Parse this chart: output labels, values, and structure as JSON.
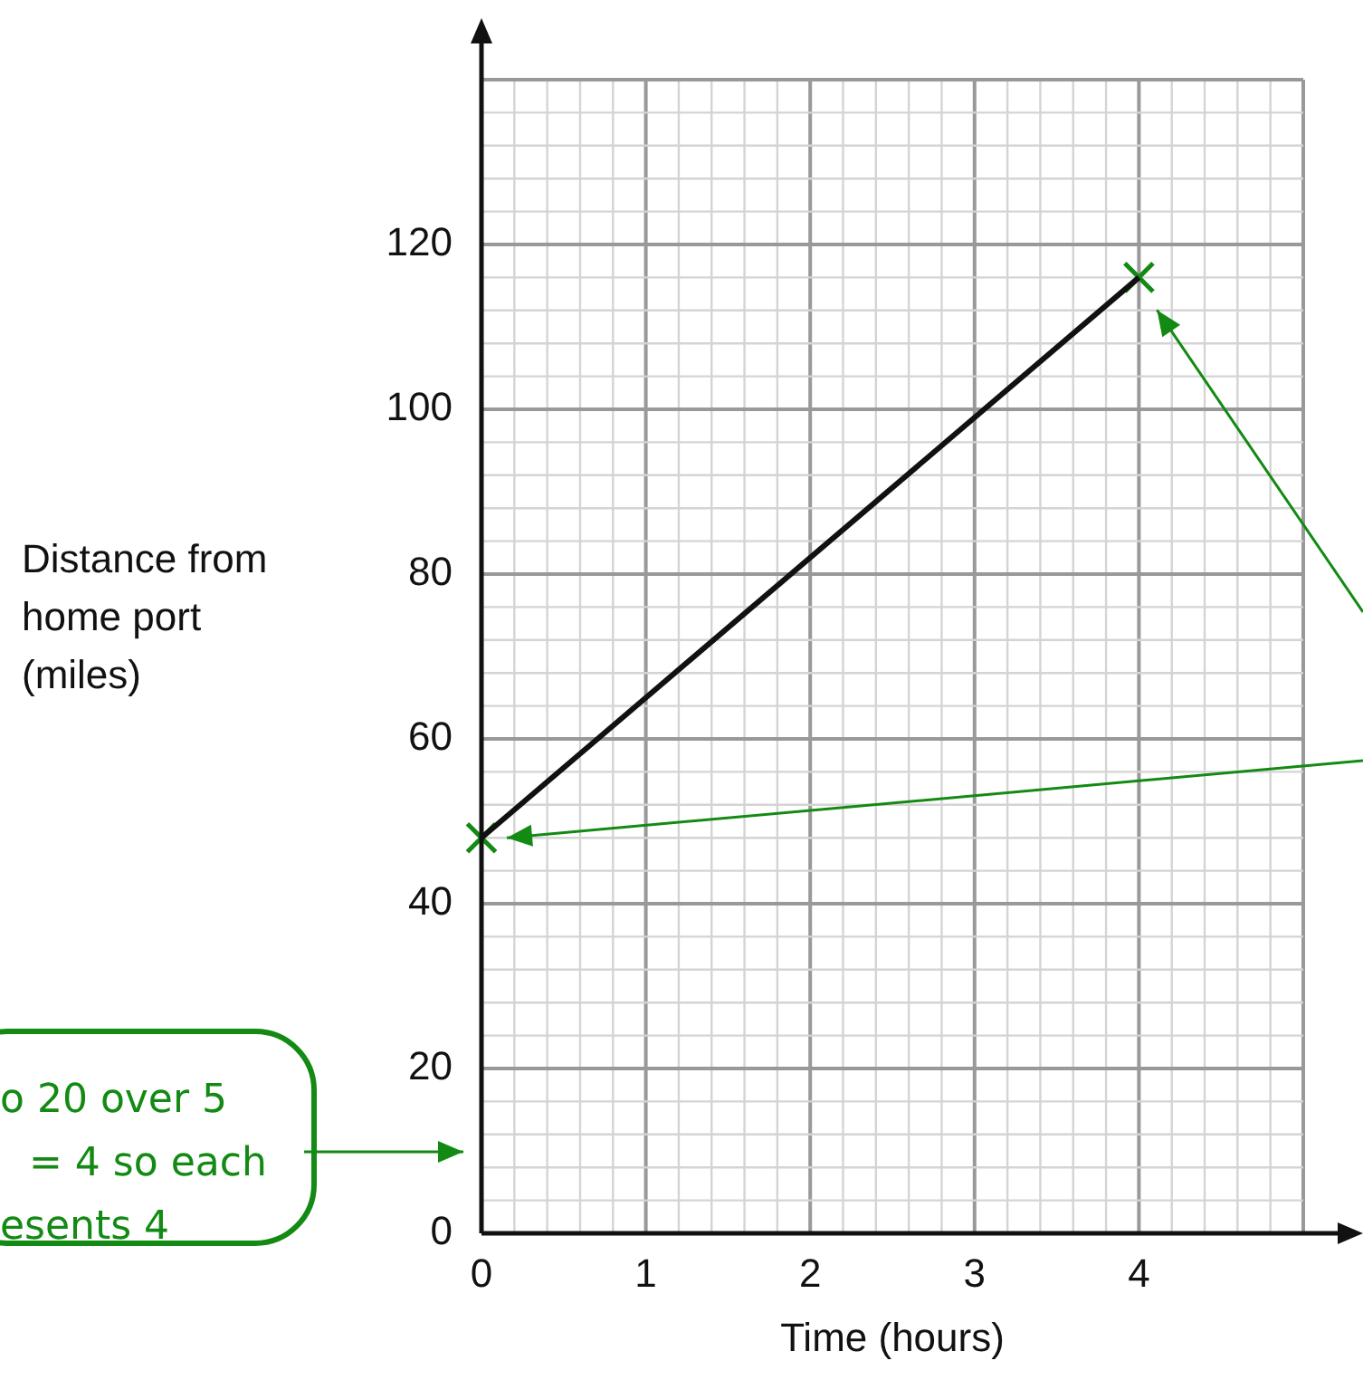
{
  "chart_data": {
    "type": "line",
    "xlabel": "Time (hours)",
    "ylabel": "Distance from home port (miles)",
    "x": [
      0,
      4
    ],
    "series": [
      {
        "type": "line",
        "color": "#111111",
        "values": [
          48,
          116
        ],
        "marker": "none"
      },
      {
        "type": "scatter",
        "color": "#138a13",
        "values": [
          48,
          116
        ],
        "marker": "cross"
      }
    ],
    "xlim": [
      0,
      5
    ],
    "ylim": [
      0,
      140
    ],
    "xticks": [
      0,
      1,
      2,
      3,
      4
    ],
    "yticks": [
      0,
      20,
      40,
      60,
      80,
      100,
      120
    ],
    "grid": true,
    "annotations": [
      "o 20 over 5",
      "= 4 so each",
      "esents 4"
    ]
  }
}
